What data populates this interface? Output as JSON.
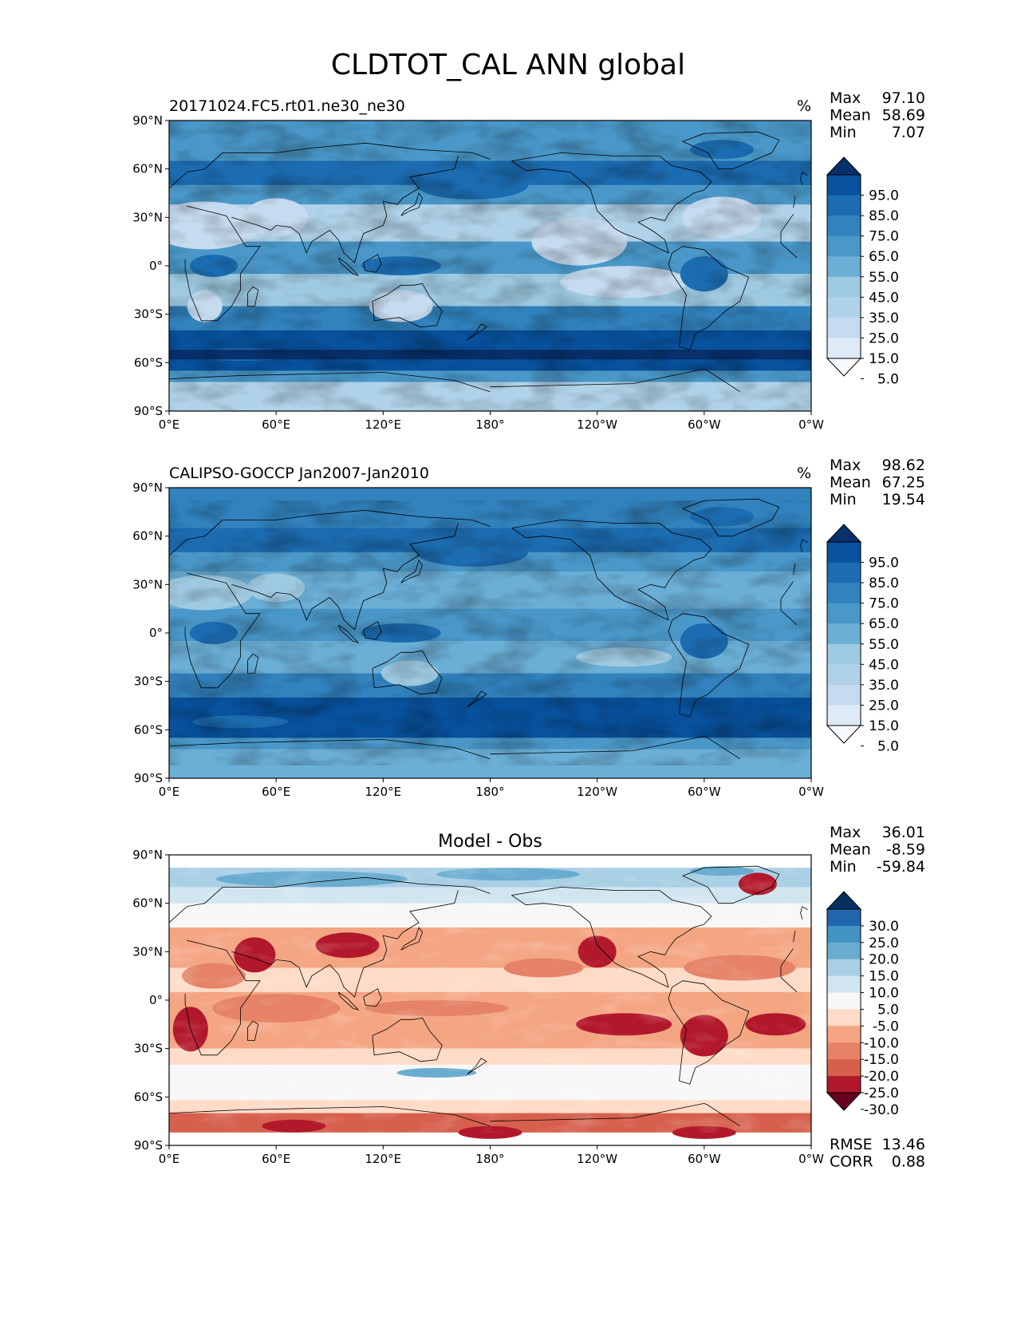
{
  "suptitle": "CLDTOT_CAL ANN global",
  "colors": {
    "blues": [
      "#f7fbff",
      "#deebf7",
      "#c6dbef",
      "#b0d2e8",
      "#9ecae1",
      "#6baed6",
      "#4a98c9",
      "#3182bd",
      "#1c6cb1",
      "#08519c",
      "#08306b"
    ],
    "diff": [
      "#67001f",
      "#b2182b",
      "#d6604d",
      "#e58267",
      "#f4a582",
      "#fddbc7",
      "#f7f7f7",
      "#d1e5f0",
      "#a9cfe5",
      "#6aacd0",
      "#4393c3",
      "#2166ac",
      "#053061"
    ],
    "land_line": "#000000"
  },
  "chart_data": [
    {
      "type": "heatmap",
      "title_left": "20171024.FC5.rt01.ne30_ne30",
      "units": "%",
      "xticks": [
        "0°E",
        "60°E",
        "120°E",
        "180°",
        "120°W",
        "60°W",
        "0°W"
      ],
      "yticks": [
        "90°N",
        "60°N",
        "30°N",
        "0°",
        "30°S",
        "60°S",
        "90°S"
      ],
      "stats": {
        "Max": "97.10",
        "Mean": "58.69",
        "Min": "7.07"
      },
      "colorbar_ticks": [
        "95.0",
        "85.0",
        "75.0",
        "65.0",
        "55.0",
        "45.0",
        "35.0",
        "25.0",
        "15.0",
        "5.0"
      ],
      "colorscale": "blues",
      "lat_extent": [
        -90,
        90
      ]
    },
    {
      "type": "heatmap",
      "title_left": "CALIPSO-GOCCP Jan2007-Jan2010",
      "units": "%",
      "xticks": [
        "0°E",
        "60°E",
        "120°E",
        "180°",
        "120°W",
        "60°W",
        "0°W"
      ],
      "yticks": [
        "90°N",
        "60°N",
        "30°N",
        "0°",
        "30°S",
        "60°S",
        "90°S"
      ],
      "stats": {
        "Max": "98.62",
        "Mean": "67.25",
        "Min": "19.54"
      },
      "colorbar_ticks": [
        "95.0",
        "85.0",
        "75.0",
        "65.0",
        "55.0",
        "45.0",
        "35.0",
        "25.0",
        "15.0",
        "5.0"
      ],
      "colorscale": "blues",
      "lat_extent": [
        -82,
        82
      ]
    },
    {
      "type": "heatmap",
      "title_center": "Model - Obs",
      "xticks": [
        "0°E",
        "60°E",
        "120°E",
        "180°",
        "120°W",
        "60°W",
        "0°W"
      ],
      "yticks": [
        "90°N",
        "60°N",
        "30°N",
        "0°",
        "30°S",
        "60°S",
        "90°S"
      ],
      "stats": {
        "Max": "36.01",
        "Mean": "-8.59",
        "Min": "-59.84"
      },
      "colorbar_ticks": [
        "30.0",
        "25.0",
        "20.0",
        "15.0",
        "10.0",
        "5.0",
        "-5.0",
        "-10.0",
        "-15.0",
        "-20.0",
        "-25.0",
        "-30.0"
      ],
      "colorscale": "diff",
      "lat_extent": [
        -82,
        82
      ],
      "metrics": {
        "RMSE": "13.46",
        "CORR": "0.88"
      }
    }
  ]
}
